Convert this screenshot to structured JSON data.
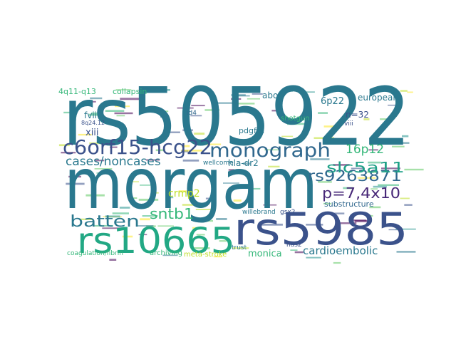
{
  "words": [
    {
      "text": "rs505922",
      "color": "#2a788e"
    },
    {
      "text": "morgam",
      "color": "#2a788e"
    },
    {
      "text": "rs5985",
      "color": "#3b528b"
    },
    {
      "text": "rs10665",
      "color": "#22a884"
    },
    {
      "text": "c6orf15-hcg22",
      "color": "#3b528b"
    },
    {
      "text": "monograph",
      "color": "#31688e"
    },
    {
      "text": "p=7,4x10",
      "color": "#482878"
    },
    {
      "text": "rs9263871",
      "color": "#31688e"
    },
    {
      "text": "slc5a11",
      "color": "#1fa187"
    },
    {
      "text": "batten",
      "color": "#2a788e"
    },
    {
      "text": "sntb1",
      "color": "#35b779"
    },
    {
      "text": "cases/noncases",
      "color": "#2a788e"
    },
    {
      "text": "16p12",
      "color": "#35b779"
    },
    {
      "text": "cardioembolic",
      "color": "#2a788e"
    },
    {
      "text": "collapsin",
      "color": "#35b779"
    },
    {
      "text": "4q11-q13",
      "color": "#35b779"
    },
    {
      "text": "crmp2",
      "color": "#bddf26"
    },
    {
      "text": "monica",
      "color": "#35b779"
    },
    {
      "text": "substructure",
      "color": "#31688e"
    },
    {
      "text": "european",
      "color": "#2a788e"
    },
    {
      "text": "fvii",
      "color": "#2a788e"
    },
    {
      "text": "xiii",
      "color": "#3b528b"
    },
    {
      "text": "abo",
      "color": "#2a788e"
    },
    {
      "text": "6p22",
      "color": "#2a788e"
    },
    {
      "text": "n=32",
      "color": "#3b528b"
    },
    {
      "text": "viii",
      "color": "#3b528b"
    },
    {
      "text": "hla-dr2",
      "color": "#2a788e"
    },
    {
      "text": "shotgun",
      "color": "#35b779"
    },
    {
      "text": "pdgfra",
      "color": "#2a788e"
    },
    {
      "text": "wellcome",
      "color": "#2a788e"
    },
    {
      "text": "id4",
      "color": "#31688e"
    },
    {
      "text": "8q24.12",
      "color": "#3b528b"
    },
    {
      "text": "willebrand",
      "color": "#2a788e"
    },
    {
      "text": "coagulation/fibrin",
      "color": "#35b779"
    },
    {
      "text": "archiving",
      "color": "#35b779"
    },
    {
      "text": "meta-stroke",
      "color": "#bddf26"
    },
    {
      "text": "trust",
      "color": "#2a788e"
    },
    {
      "text": "gsx2",
      "color": "#3b528b"
    },
    {
      "text": "has2",
      "color": "#3b528b"
    }
  ]
}
